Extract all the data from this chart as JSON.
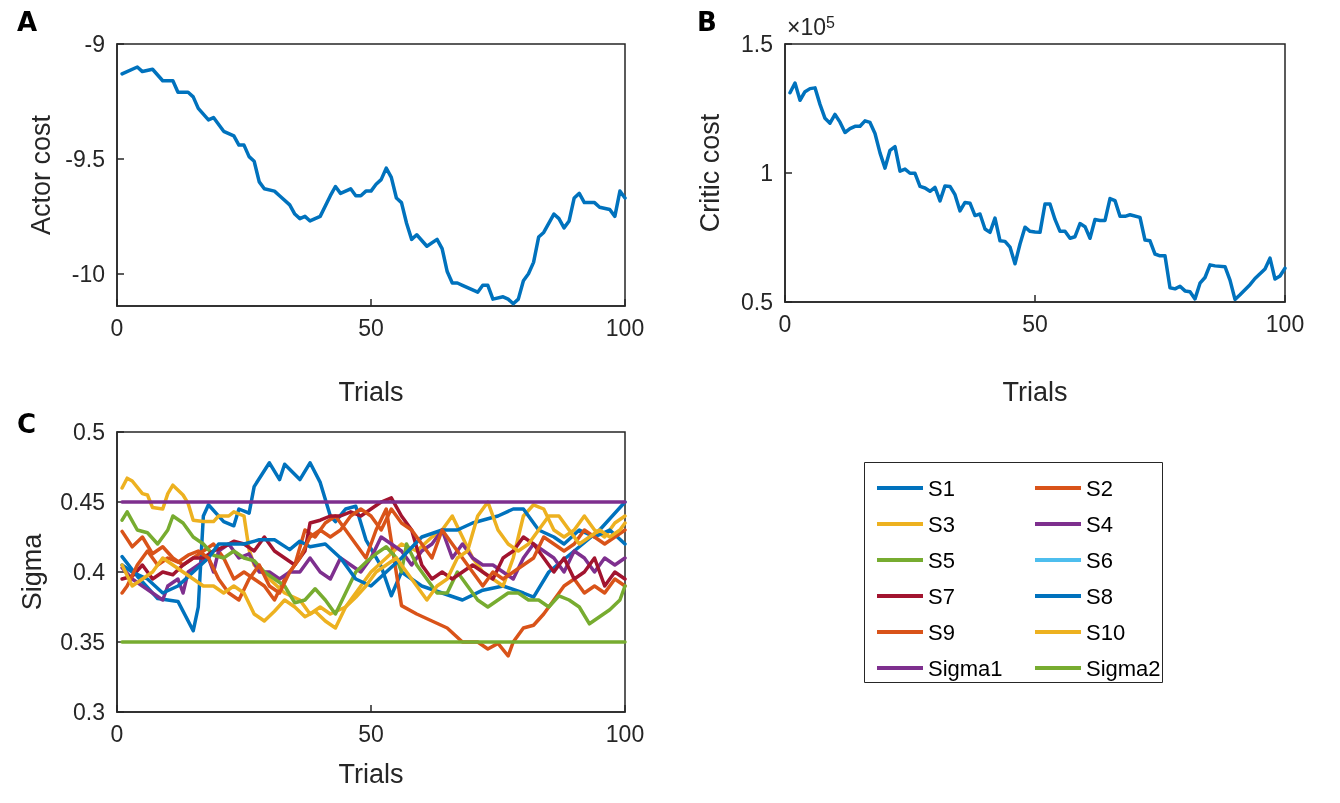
{
  "chart_data": [
    {
      "type": "line",
      "title": "A",
      "xlabel": "Trials",
      "ylabel": "Actor cost",
      "color": "#0072bd",
      "xlim": [
        0,
        100
      ],
      "xticks": [
        0,
        50,
        100
      ],
      "ylim": [
        -10.14,
        -9
      ],
      "yticks": [
        -10,
        -9.5,
        -9
      ],
      "grid": false,
      "x": [
        1,
        4,
        5,
        7,
        9,
        11,
        12,
        14,
        15,
        16,
        18,
        19,
        21,
        23,
        24,
        25,
        26,
        27,
        28,
        29,
        31,
        32,
        34,
        35,
        36,
        37,
        38,
        40,
        42,
        43,
        44,
        46,
        47,
        48,
        49,
        50,
        51,
        52,
        53,
        54,
        55,
        56,
        57,
        58,
        59,
        61,
        63,
        64,
        65,
        66,
        67,
        68,
        71,
        72,
        73,
        74,
        76,
        77,
        78,
        79,
        80,
        81,
        82,
        83,
        84,
        86,
        87,
        88,
        89,
        90,
        91,
        92,
        94,
        95,
        97,
        98,
        99,
        100
      ],
      "values": [
        -9.13,
        -9.1,
        -9.12,
        -9.11,
        -9.16,
        -9.16,
        -9.21,
        -9.21,
        -9.23,
        -9.28,
        -9.33,
        -9.32,
        -9.38,
        -9.4,
        -9.44,
        -9.44,
        -9.49,
        -9.51,
        -9.6,
        -9.63,
        -9.64,
        -9.66,
        -9.7,
        -9.74,
        -9.76,
        -9.75,
        -9.77,
        -9.75,
        -9.66,
        -9.62,
        -9.65,
        -9.63,
        -9.66,
        -9.66,
        -9.64,
        -9.64,
        -9.61,
        -9.59,
        -9.54,
        -9.58,
        -9.67,
        -9.69,
        -9.78,
        -9.85,
        -9.83,
        -9.88,
        -9.85,
        -9.89,
        -9.99,
        -10.04,
        -10.04,
        -10.05,
        -10.08,
        -10.05,
        -10.05,
        -10.11,
        -10.1,
        -10.11,
        -10.13,
        -10.11,
        -10.03,
        -10.0,
        -9.95,
        -9.84,
        -9.82,
        -9.74,
        -9.76,
        -9.8,
        -9.77,
        -9.67,
        -9.65,
        -9.69,
        -9.69,
        -9.71,
        -9.72,
        -9.75,
        -9.64,
        -9.67
      ]
    },
    {
      "type": "line",
      "title": "B",
      "xlabel": "Trials",
      "ylabel": "Critic cost",
      "annotations": [
        "×10$^{5}$"
      ],
      "color": "#0072bd",
      "xlim": [
        0,
        100
      ],
      "xticks": [
        0,
        50,
        100
      ],
      "ylim": [
        0.5,
        1.5
      ],
      "yticks": [
        0.5,
        1,
        1.5
      ],
      "grid": false,
      "x": [
        1,
        2,
        3,
        4,
        5,
        6,
        7,
        8,
        9,
        10,
        11,
        12,
        13,
        14,
        15,
        16,
        17,
        18,
        19,
        20,
        21,
        22,
        23,
        24,
        25,
        26,
        27,
        28,
        29,
        30,
        31,
        32,
        33,
        34,
        35,
        36,
        37,
        38,
        39,
        40,
        41,
        42,
        43,
        44,
        45,
        46,
        47,
        48,
        49,
        50,
        51,
        52,
        53,
        54,
        55,
        56,
        57,
        58,
        59,
        60,
        61,
        62,
        63,
        64,
        65,
        66,
        67,
        68,
        69,
        71,
        72,
        73,
        74,
        75,
        76,
        77,
        78,
        79,
        80,
        81,
        82,
        83,
        84,
        85,
        86,
        88,
        89,
        90,
        91,
        93,
        94,
        96,
        97,
        98,
        99,
        100
      ],
      "values": [
        1.311,
        1.349,
        1.282,
        1.315,
        1.327,
        1.33,
        1.266,
        1.212,
        1.193,
        1.227,
        1.197,
        1.157,
        1.172,
        1.181,
        1.181,
        1.202,
        1.196,
        1.153,
        1.078,
        1.019,
        1.088,
        1.102,
        1.007,
        1.015,
        0.999,
        0.999,
        0.948,
        0.942,
        0.929,
        0.944,
        0.892,
        0.95,
        0.948,
        0.916,
        0.853,
        0.886,
        0.883,
        0.835,
        0.841,
        0.783,
        0.77,
        0.825,
        0.737,
        0.735,
        0.713,
        0.648,
        0.725,
        0.79,
        0.774,
        0.771,
        0.77,
        0.88,
        0.88,
        0.82,
        0.774,
        0.774,
        0.747,
        0.753,
        0.804,
        0.792,
        0.747,
        0.82,
        0.816,
        0.816,
        0.901,
        0.893,
        0.832,
        0.832,
        0.838,
        0.828,
        0.74,
        0.737,
        0.686,
        0.679,
        0.679,
        0.555,
        0.551,
        0.561,
        0.543,
        0.54,
        0.512,
        0.573,
        0.595,
        0.644,
        0.64,
        0.637,
        0.585,
        0.51,
        0.528,
        0.567,
        0.591,
        0.628,
        0.67,
        0.589,
        0.601,
        0.631
      ]
    },
    {
      "type": "line",
      "title": "C",
      "xlabel": "Trials",
      "ylabel": "Sigma",
      "xlim": [
        0,
        100
      ],
      "xticks": [
        0,
        50,
        100
      ],
      "ylim": [
        0.3,
        0.5
      ],
      "yticks": [
        0.3,
        0.35,
        0.4,
        0.45,
        0.5
      ],
      "grid": false,
      "legend": "right",
      "series": [
        {
          "name": "S1",
          "color": "#0072bd",
          "x": [
            1,
            4,
            8,
            12,
            15,
            16,
            17,
            18,
            21,
            23,
            24,
            26,
            27,
            30,
            32,
            33,
            36,
            38,
            40,
            42,
            43,
            45,
            47,
            49,
            52,
            54,
            56,
            60,
            64,
            68,
            72,
            76,
            80,
            82,
            85,
            90,
            95,
            100
          ],
          "values": [
            0.411,
            0.397,
            0.381,
            0.379,
            0.358,
            0.375,
            0.44,
            0.448,
            0.436,
            0.433,
            0.445,
            0.442,
            0.461,
            0.478,
            0.466,
            0.477,
            0.466,
            0.478,
            0.464,
            0.44,
            0.436,
            0.445,
            0.447,
            0.423,
            0.404,
            0.383,
            0.4,
            0.39,
            0.385,
            0.38,
            0.387,
            0.39,
            0.385,
            0.382,
            0.4,
            0.415,
            0.43,
            0.45
          ]
        },
        {
          "name": "S2",
          "color": "#d95319",
          "x": [
            1,
            3,
            5,
            7,
            9,
            11,
            13,
            15,
            17,
            19,
            21,
            23,
            25,
            27,
            29,
            31,
            33,
            35,
            37,
            39,
            41,
            43,
            45,
            47,
            49,
            51,
            53,
            56,
            59,
            62,
            65,
            68,
            71,
            73,
            75,
            77,
            78,
            80,
            82,
            84,
            86,
            88,
            90,
            92,
            94,
            96,
            98,
            100
          ],
          "values": [
            0.429,
            0.418,
            0.425,
            0.413,
            0.418,
            0.41,
            0.405,
            0.41,
            0.415,
            0.42,
            0.41,
            0.395,
            0.4,
            0.395,
            0.39,
            0.38,
            0.395,
            0.405,
            0.43,
            0.425,
            0.435,
            0.44,
            0.43,
            0.42,
            0.41,
            0.43,
            0.445,
            0.376,
            0.37,
            0.365,
            0.36,
            0.35,
            0.35,
            0.345,
            0.349,
            0.34,
            0.35,
            0.36,
            0.362,
            0.37,
            0.38,
            0.39,
            0.395,
            0.385,
            0.39,
            0.385,
            0.395,
            0.39
          ]
        },
        {
          "name": "S3",
          "color": "#edb120",
          "x": [
            1,
            2,
            3,
            5,
            6,
            7,
            9,
            10,
            11,
            13,
            14,
            15,
            17,
            19,
            20,
            22,
            23,
            25,
            26,
            27,
            30,
            33,
            36,
            38,
            40,
            42,
            45,
            48,
            50,
            53,
            56,
            59,
            62,
            64,
            66,
            68,
            70,
            72,
            74,
            76,
            78,
            80,
            82,
            84,
            86,
            88,
            90,
            92,
            94,
            96,
            98,
            100
          ],
          "values": [
            0.46,
            0.467,
            0.465,
            0.456,
            0.455,
            0.446,
            0.445,
            0.456,
            0.462,
            0.455,
            0.449,
            0.437,
            0.436,
            0.436,
            0.44,
            0.44,
            0.443,
            0.44,
            0.416,
            0.405,
            0.395,
            0.385,
            0.38,
            0.37,
            0.375,
            0.37,
            0.375,
            0.39,
            0.4,
            0.41,
            0.42,
            0.415,
            0.425,
            0.43,
            0.44,
            0.425,
            0.41,
            0.4,
            0.395,
            0.39,
            0.41,
            0.44,
            0.448,
            0.445,
            0.43,
            0.425,
            0.43,
            0.44,
            0.43,
            0.425,
            0.435,
            0.44
          ]
        },
        {
          "name": "S4",
          "color": "#7e2f8e",
          "x": [
            1,
            3,
            5,
            7,
            9,
            10,
            12,
            13,
            14,
            16,
            18,
            19,
            20,
            22,
            24,
            26,
            28,
            30,
            32,
            34,
            36,
            38,
            40,
            42,
            44,
            46,
            48,
            50,
            52,
            54,
            56,
            58,
            60,
            62,
            64,
            66,
            68,
            70,
            72,
            74,
            76,
            78,
            80,
            82,
            84,
            86,
            88,
            90,
            92,
            94,
            96,
            98,
            100
          ],
          "values": [
            0.403,
            0.395,
            0.39,
            0.385,
            0.38,
            0.39,
            0.395,
            0.385,
            0.4,
            0.405,
            0.41,
            0.4,
            0.415,
            0.42,
            0.41,
            0.413,
            0.4,
            0.4,
            0.395,
            0.4,
            0.4,
            0.41,
            0.4,
            0.395,
            0.41,
            0.405,
            0.4,
            0.41,
            0.425,
            0.42,
            0.415,
            0.405,
            0.415,
            0.42,
            0.43,
            0.41,
            0.42,
            0.41,
            0.405,
            0.405,
            0.4,
            0.395,
            0.41,
            0.42,
            0.415,
            0.41,
            0.4,
            0.415,
            0.41,
            0.4,
            0.41,
            0.405,
            0.41
          ]
        },
        {
          "name": "S5",
          "color": "#77ac30",
          "x": [
            1,
            2,
            4,
            6,
            8,
            10,
            11,
            13,
            15,
            17,
            19,
            21,
            23,
            25,
            27,
            29,
            31,
            33,
            35,
            37,
            39,
            41,
            43,
            45,
            47,
            49,
            51,
            53,
            55,
            56,
            57,
            59,
            61,
            63,
            65,
            67,
            69,
            71,
            73,
            75,
            77,
            79,
            81,
            83,
            85,
            87,
            89,
            91,
            93,
            95,
            97,
            99,
            100
          ],
          "values": [
            0.437,
            0.443,
            0.43,
            0.428,
            0.42,
            0.43,
            0.44,
            0.435,
            0.425,
            0.42,
            0.412,
            0.41,
            0.415,
            0.41,
            0.408,
            0.4,
            0.395,
            0.39,
            0.378,
            0.38,
            0.388,
            0.38,
            0.37,
            0.385,
            0.4,
            0.407,
            0.413,
            0.418,
            0.41,
            0.4,
            0.42,
            0.405,
            0.395,
            0.385,
            0.385,
            0.4,
            0.39,
            0.38,
            0.375,
            0.38,
            0.385,
            0.385,
            0.38,
            0.38,
            0.375,
            0.383,
            0.38,
            0.375,
            0.363,
            0.368,
            0.373,
            0.38,
            0.39
          ]
        },
        {
          "name": "S6",
          "color": "#4dbeee"
        },
        {
          "name": "S7",
          "color": "#a2142f",
          "x": [
            1,
            3,
            5,
            7,
            9,
            11,
            13,
            15,
            17,
            19,
            21,
            23,
            25,
            27,
            29,
            31,
            33,
            35,
            37,
            38,
            40,
            42,
            44,
            46,
            48,
            50,
            52,
            54,
            56,
            58,
            60,
            62,
            64,
            66,
            68,
            70,
            72,
            74,
            76,
            78,
            80,
            82,
            84,
            86,
            88,
            90,
            92,
            94,
            96,
            98,
            100
          ],
          "values": [
            0.395,
            0.397,
            0.405,
            0.395,
            0.4,
            0.398,
            0.405,
            0.41,
            0.41,
            0.415,
            0.418,
            0.422,
            0.42,
            0.415,
            0.425,
            0.415,
            0.41,
            0.405,
            0.415,
            0.435,
            0.437,
            0.44,
            0.44,
            0.443,
            0.44,
            0.445,
            0.45,
            0.453,
            0.44,
            0.43,
            0.405,
            0.395,
            0.4,
            0.395,
            0.4,
            0.405,
            0.4,
            0.395,
            0.41,
            0.415,
            0.425,
            0.42,
            0.41,
            0.4,
            0.41,
            0.395,
            0.4,
            0.41,
            0.39,
            0.4,
            0.395
          ]
        },
        {
          "name": "S8",
          "color": "#0072bd",
          "x": [
            1,
            3,
            6,
            9,
            12,
            15,
            18,
            20,
            25,
            28,
            31,
            34,
            36,
            38,
            41,
            44,
            47,
            50,
            53,
            56,
            60,
            64,
            67,
            70,
            73,
            75,
            78,
            80,
            83,
            86,
            88,
            91,
            94,
            97,
            100
          ],
          "values": [
            0.405,
            0.4,
            0.395,
            0.385,
            0.39,
            0.4,
            0.41,
            0.42,
            0.42,
            0.423,
            0.423,
            0.416,
            0.422,
            0.418,
            0.42,
            0.41,
            0.395,
            0.39,
            0.4,
            0.41,
            0.425,
            0.43,
            0.43,
            0.435,
            0.438,
            0.44,
            0.445,
            0.445,
            0.43,
            0.425,
            0.42,
            0.43,
            0.425,
            0.43,
            0.42
          ]
        },
        {
          "name": "S9",
          "color": "#d95319",
          "x": [
            1,
            2,
            4,
            6,
            8,
            10,
            12,
            14,
            16,
            18,
            20,
            22,
            24,
            26,
            28,
            30,
            32,
            34,
            36,
            38,
            40,
            42,
            44,
            46,
            48,
            50,
            52,
            54,
            56,
            58,
            60,
            62,
            64,
            66,
            68,
            70,
            72,
            74,
            76,
            78,
            80,
            82,
            84,
            86,
            88,
            90,
            92,
            94,
            96,
            98,
            100
          ],
          "values": [
            0.385,
            0.39,
            0.405,
            0.415,
            0.405,
            0.41,
            0.407,
            0.412,
            0.415,
            0.41,
            0.395,
            0.385,
            0.38,
            0.395,
            0.405,
            0.39,
            0.385,
            0.4,
            0.41,
            0.425,
            0.43,
            0.425,
            0.43,
            0.44,
            0.445,
            0.44,
            0.43,
            0.445,
            0.435,
            0.43,
            0.42,
            0.41,
            0.43,
            0.42,
            0.41,
            0.4,
            0.39,
            0.4,
            0.395,
            0.4,
            0.405,
            0.41,
            0.425,
            0.42,
            0.415,
            0.42,
            0.43,
            0.425,
            0.42,
            0.425,
            0.43
          ]
        },
        {
          "name": "S10",
          "color": "#edb120",
          "x": [
            1,
            3,
            5,
            7,
            9,
            11,
            13,
            15,
            17,
            19,
            21,
            23,
            25,
            27,
            29,
            31,
            33,
            35,
            37,
            39,
            41,
            43,
            45,
            47,
            49,
            51,
            53,
            55,
            57,
            59,
            61,
            63,
            65,
            67,
            69,
            71,
            73,
            75,
            77,
            79,
            81,
            83,
            85,
            87,
            89,
            91,
            93,
            95,
            97,
            99,
            100
          ],
          "values": [
            0.405,
            0.39,
            0.395,
            0.4,
            0.41,
            0.405,
            0.4,
            0.395,
            0.39,
            0.39,
            0.385,
            0.39,
            0.385,
            0.37,
            0.365,
            0.372,
            0.38,
            0.375,
            0.368,
            0.372,
            0.365,
            0.36,
            0.375,
            0.382,
            0.39,
            0.4,
            0.405,
            0.41,
            0.4,
            0.39,
            0.38,
            0.39,
            0.395,
            0.41,
            0.415,
            0.44,
            0.45,
            0.43,
            0.42,
            0.415,
            0.42,
            0.43,
            0.44,
            0.44,
            0.43,
            0.42,
            0.425,
            0.43,
            0.425,
            0.43,
            0.435
          ]
        },
        {
          "name": "Sigma1",
          "color": "#7e2f8e",
          "x": [
            1,
            100
          ],
          "values": [
            0.45,
            0.45
          ]
        },
        {
          "name": "Sigma2",
          "color": "#77ac30",
          "x": [
            1,
            100
          ],
          "values": [
            0.35,
            0.35
          ]
        }
      ]
    }
  ]
}
